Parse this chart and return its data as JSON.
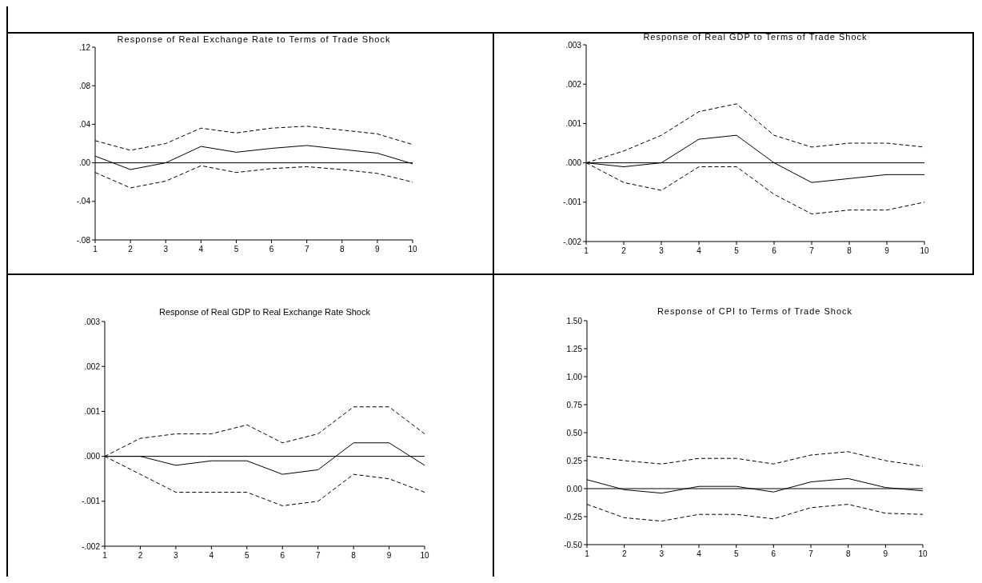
{
  "chart_data": [
    {
      "type": "line",
      "title": "Response of Real Exchange Rate to Terms of Trade Shock",
      "x": [
        1,
        2,
        3,
        4,
        5,
        6,
        7,
        8,
        9,
        10
      ],
      "xlim": [
        1,
        10
      ],
      "xticks": [
        1,
        2,
        3,
        4,
        5,
        6,
        7,
        8,
        9,
        10
      ],
      "ylim": [
        -0.08,
        0.12
      ],
      "yticks": [
        {
          "value": -0.08,
          "label": "-.08"
        },
        {
          "value": -0.04,
          "label": "-.04"
        },
        {
          "value": 0,
          "label": ".00"
        },
        {
          "value": 0.04,
          "label": ".04"
        },
        {
          "value": 0.08,
          "label": ".08"
        },
        {
          "value": 0.12,
          "label": ".12"
        }
      ],
      "grid": false,
      "marker": "none",
      "series": [
        {
          "color": "#000000",
          "line_style": "solid",
          "values": [
            0.007,
            -0.007,
            0.0,
            0.017,
            0.011,
            0.015,
            0.018,
            0.014,
            0.01,
            -0.001
          ]
        },
        {
          "color": "#000000",
          "line_style": "dashed",
          "values": [
            0.023,
            0.013,
            0.02,
            0.036,
            0.031,
            0.036,
            0.038,
            0.034,
            0.03,
            0.019
          ]
        },
        {
          "color": "#000000",
          "line_style": "dashed",
          "values": [
            -0.01,
            -0.026,
            -0.019,
            -0.003,
            -0.01,
            -0.006,
            -0.004,
            -0.007,
            -0.011,
            -0.02
          ]
        }
      ],
      "ref_lines": [
        {
          "axis": "y",
          "value": 0,
          "color": "#000000"
        }
      ]
    },
    {
      "type": "line",
      "title": "Response of Real GDP to Terms of Trade Shock",
      "x": [
        1,
        2,
        3,
        4,
        5,
        6,
        7,
        8,
        9,
        10
      ],
      "xlim": [
        1,
        10
      ],
      "xticks": [
        1,
        2,
        3,
        4,
        5,
        6,
        7,
        8,
        9,
        10
      ],
      "ylim": [
        -0.002,
        0.003
      ],
      "yticks": [
        {
          "value": -0.002,
          "label": "-.002"
        },
        {
          "value": -0.001,
          "label": "-.001"
        },
        {
          "value": 0,
          "label": ".000"
        },
        {
          "value": 0.001,
          "label": ".001"
        },
        {
          "value": 0.002,
          "label": ".002"
        },
        {
          "value": 0.003,
          "label": ".003"
        }
      ],
      "grid": false,
      "marker": "none",
      "series": [
        {
          "color": "#000000",
          "line_style": "solid",
          "values": [
            0,
            -0.0001,
            0,
            0.0006,
            0.0007,
            0,
            -0.0005,
            -0.0004,
            -0.0003,
            -0.0003
          ]
        },
        {
          "color": "#000000",
          "line_style": "dashed",
          "values": [
            0,
            0.0003,
            0.0007,
            0.0013,
            0.0015,
            0.0007,
            0.0004,
            0.0005,
            0.0005,
            0.0004
          ]
        },
        {
          "color": "#000000",
          "line_style": "dashed",
          "values": [
            0,
            -0.0005,
            -0.0007,
            -0.0001,
            -0.0001,
            -0.0008,
            -0.0013,
            -0.0012,
            -0.0012,
            -0.001
          ]
        }
      ],
      "ref_lines": [
        {
          "axis": "y",
          "value": 0,
          "color": "#000000"
        }
      ]
    },
    {
      "type": "line",
      "title": "Response of Real GDP to Real Exchange Rate Shock",
      "x": [
        1,
        2,
        3,
        4,
        5,
        6,
        7,
        8,
        9,
        10
      ],
      "xlim": [
        1,
        10
      ],
      "xticks": [
        1,
        2,
        3,
        4,
        5,
        6,
        7,
        8,
        9,
        10
      ],
      "ylim": [
        -0.002,
        0.003
      ],
      "yticks": [
        {
          "value": -0.002,
          "label": "-.002"
        },
        {
          "value": -0.001,
          "label": "-.001"
        },
        {
          "value": 0,
          "label": ".000"
        },
        {
          "value": 0.001,
          "label": ".001"
        },
        {
          "value": 0.002,
          "label": ".002"
        },
        {
          "value": 0.003,
          "label": ".003"
        }
      ],
      "grid": false,
      "marker": "none",
      "series": [
        {
          "color": "#000000",
          "line_style": "solid",
          "values": [
            0,
            0,
            -0.0002,
            -0.0001,
            -0.0001,
            -0.0004,
            -0.0003,
            0.0003,
            0.0003,
            -0.0002
          ]
        },
        {
          "color": "#000000",
          "line_style": "dashed",
          "values": [
            0,
            0.0004,
            0.0005,
            0.0005,
            0.0007,
            0.0003,
            0.0005,
            0.0011,
            0.0011,
            0.0005
          ]
        },
        {
          "color": "#000000",
          "line_style": "dashed",
          "values": [
            0,
            -0.0004,
            -0.0008,
            -0.0008,
            -0.0008,
            -0.0011,
            -0.001,
            -0.0004,
            -0.0005,
            -0.0008
          ]
        }
      ],
      "ref_lines": [
        {
          "axis": "y",
          "value": 0,
          "color": "#000000"
        }
      ]
    },
    {
      "type": "line",
      "title": "Response of CPI to Terms of Trade Shock",
      "x": [
        1,
        2,
        3,
        4,
        5,
        6,
        7,
        8,
        9,
        10
      ],
      "xlim": [
        1,
        10
      ],
      "xticks": [
        1,
        2,
        3,
        4,
        5,
        6,
        7,
        8,
        9,
        10
      ],
      "ylim": [
        -0.5,
        1.5
      ],
      "yticks": [
        {
          "value": -0.5,
          "label": "-0.50"
        },
        {
          "value": -0.25,
          "label": "-0.25"
        },
        {
          "value": 0,
          "label": "0.00"
        },
        {
          "value": 0.25,
          "label": "0.25"
        },
        {
          "value": 0.5,
          "label": "0.50"
        },
        {
          "value": 0.75,
          "label": "0.75"
        },
        {
          "value": 1,
          "label": "1.00"
        },
        {
          "value": 1.25,
          "label": "1.25"
        },
        {
          "value": 1.5,
          "label": "1.50"
        }
      ],
      "grid": false,
      "marker": "none",
      "series": [
        {
          "color": "#000000",
          "line_style": "solid",
          "values": [
            0.08,
            -0.01,
            -0.04,
            0.02,
            0.02,
            -0.03,
            0.06,
            0.09,
            0.01,
            -0.02
          ]
        },
        {
          "color": "#000000",
          "line_style": "dashed",
          "values": [
            0.29,
            0.25,
            0.22,
            0.27,
            0.27,
            0.22,
            0.3,
            0.33,
            0.25,
            0.2
          ]
        },
        {
          "color": "#000000",
          "line_style": "dashed",
          "values": [
            -0.14,
            -0.26,
            -0.29,
            -0.23,
            -0.23,
            -0.27,
            -0.17,
            -0.14,
            -0.22,
            -0.23
          ]
        }
      ],
      "ref_lines": [
        {
          "axis": "y",
          "value": 0,
          "color": "#000000"
        }
      ]
    }
  ]
}
